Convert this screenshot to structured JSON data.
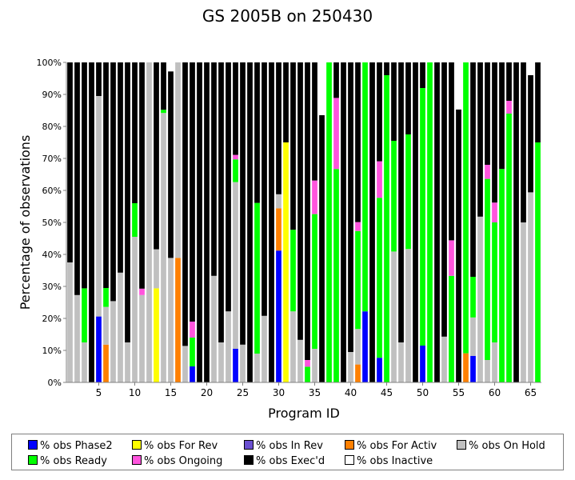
{
  "chart_data": {
    "type": "bar",
    "stacked": true,
    "title": "GS 2005B on 250430",
    "xlabel": "Program ID",
    "ylabel": "Percentage of observations",
    "ylim": [
      0,
      100
    ],
    "y_ticks": [
      "0%",
      "10%",
      "20%",
      "30%",
      "40%",
      "50%",
      "60%",
      "70%",
      "80%",
      "90%",
      "100%"
    ],
    "x_ticks": [
      "5",
      "10",
      "15",
      "20",
      "25",
      "30",
      "35",
      "40",
      "45",
      "50",
      "55",
      "60",
      "65"
    ],
    "x": [
      1,
      2,
      3,
      4,
      5,
      6,
      7,
      8,
      9,
      10,
      11,
      12,
      13,
      14,
      15,
      16,
      17,
      18,
      19,
      20,
      21,
      22,
      23,
      24,
      25,
      26,
      27,
      28,
      29,
      30,
      31,
      32,
      33,
      34,
      35,
      36,
      37,
      38,
      39,
      40,
      41,
      42,
      43,
      44,
      45,
      46,
      47,
      48,
      49,
      50,
      51,
      52,
      53,
      54,
      55,
      56,
      57,
      58,
      59,
      60,
      61,
      62,
      63,
      64,
      65,
      66
    ],
    "series": [
      {
        "name": "% obs Phase2",
        "color": "#0000ff",
        "values": [
          0,
          0,
          0,
          0,
          20.6,
          0,
          0,
          0,
          0,
          0,
          0,
          0,
          0,
          0,
          0,
          0,
          0,
          5,
          0,
          0,
          0,
          0,
          0,
          10.5,
          0,
          0,
          0,
          0,
          0,
          41.2,
          0,
          0,
          0,
          0,
          0,
          0,
          0,
          0,
          0,
          0,
          0,
          22.2,
          0,
          7.7,
          0,
          0,
          0,
          0,
          0,
          11.5,
          0,
          0,
          0,
          0,
          0,
          0,
          8.3,
          0,
          0,
          0,
          0,
          0,
          0,
          0,
          0,
          0
        ]
      },
      {
        "name": "% obs For Rev",
        "color": "#ffff00",
        "values": [
          0,
          0,
          0,
          0,
          0,
          0,
          0,
          0,
          0,
          0,
          0,
          0,
          29.4,
          0,
          0,
          0,
          0,
          0,
          0,
          0,
          0,
          0,
          0,
          0,
          0,
          0,
          0,
          0,
          0,
          0,
          75,
          0,
          0,
          0,
          0,
          0,
          0,
          0,
          0,
          0,
          0,
          0,
          0,
          0,
          0,
          0,
          0,
          0,
          0,
          0,
          0,
          0,
          0,
          0,
          0,
          0,
          0,
          0,
          0,
          0,
          0,
          0,
          0,
          0,
          0,
          0
        ]
      },
      {
        "name": "% obs In Rev",
        "color": "#6a4fd0",
        "values": [
          0,
          0,
          0,
          0,
          0,
          0,
          0,
          0,
          0,
          0,
          0,
          0,
          0,
          0,
          0,
          0,
          0,
          0,
          0,
          0,
          0,
          0,
          0,
          0,
          0,
          0,
          0,
          0,
          0,
          0,
          0,
          0,
          0,
          0,
          0,
          0,
          0,
          0,
          0,
          0,
          0,
          0,
          0,
          0,
          0,
          0,
          0,
          0,
          0,
          0,
          0,
          0,
          0,
          0,
          0,
          0,
          0,
          0,
          0,
          0,
          0,
          0,
          0,
          0,
          0,
          0
        ]
      },
      {
        "name": "% obs For Activ",
        "color": "#ff8000",
        "values": [
          0,
          0,
          0,
          0,
          0,
          11.8,
          0,
          0,
          0,
          0,
          0,
          0,
          0,
          0,
          0,
          38.9,
          0,
          0,
          0,
          0,
          0,
          0,
          0,
          0,
          0,
          0,
          0,
          0,
          0,
          13.2,
          0,
          0,
          0,
          0,
          0,
          0,
          0,
          0,
          0,
          0,
          5.6,
          0,
          0,
          0,
          0,
          0,
          0,
          0,
          0,
          0,
          0,
          0,
          0,
          0,
          0,
          9.1,
          0,
          0,
          0,
          0,
          0,
          0,
          0,
          0,
          0,
          0
        ]
      },
      {
        "name": "% obs On Hold",
        "color": "#c0c0c0",
        "values": [
          37.5,
          27.3,
          12.5,
          0,
          68.9,
          11.8,
          25.4,
          34.3,
          12.5,
          45.5,
          27.3,
          100,
          12.2,
          84.2,
          38.9,
          61.1,
          11.4,
          0,
          0,
          0,
          33.3,
          12.5,
          22.2,
          52.1,
          11.8,
          0,
          9,
          20.8,
          0,
          4.4,
          0,
          22.2,
          13.3,
          0,
          10.5,
          0,
          0,
          0,
          0,
          9.5,
          11.1,
          0,
          0,
          0,
          0,
          40.9,
          12.5,
          41.7,
          0,
          0,
          0,
          0,
          14.3,
          0,
          0,
          0,
          12,
          51.8,
          7,
          12.5,
          0,
          0,
          0,
          50,
          59.4,
          0
        ]
      },
      {
        "name": "% obs Ready",
        "color": "#00ff00",
        "values": [
          0,
          0,
          16.9,
          0,
          0,
          5.9,
          0,
          0,
          0,
          10.5,
          0,
          0,
          0,
          1,
          0,
          0,
          0,
          9,
          0,
          0,
          0,
          0,
          0,
          7.1,
          0,
          0,
          47.1,
          0,
          0,
          0,
          0,
          25.5,
          0,
          4.9,
          42.1,
          0,
          100,
          66.7,
          0,
          0,
          30.6,
          77.8,
          0,
          50,
          96,
          34.6,
          0,
          35.8,
          0,
          80.5,
          100,
          0,
          0,
          33.3,
          0,
          90.9,
          12.7,
          0,
          56.6,
          37.5,
          66.7,
          84,
          0,
          0,
          0,
          75
        ]
      },
      {
        "name": "% obs Ongoing",
        "color": "#ff55dd",
        "values": [
          0,
          0,
          0,
          0,
          0,
          0,
          0,
          0,
          0,
          0,
          2,
          0,
          0,
          0,
          0,
          0,
          0,
          5,
          0,
          0,
          0,
          0,
          0,
          1.4,
          0,
          0,
          0,
          0,
          0,
          0,
          0,
          0,
          0,
          2.1,
          10.5,
          0,
          0,
          22.2,
          0,
          0,
          2.8,
          0,
          0,
          11.4,
          0,
          0,
          0,
          0,
          0,
          0,
          0,
          0,
          0,
          11.1,
          0,
          0,
          0,
          0,
          4.4,
          6.2,
          0,
          4,
          0,
          0,
          0,
          0
        ]
      },
      {
        "name": "% obs Exec'd",
        "color": "#000000",
        "values": [
          62.5,
          72.7,
          70.6,
          100,
          10.5,
          70.5,
          74.6,
          65.7,
          87.5,
          44,
          70.7,
          0,
          58.4,
          14.8,
          58.3,
          0,
          88.6,
          81,
          100,
          100,
          66.7,
          87.5,
          77.8,
          28.9,
          88.2,
          100,
          43.9,
          79.2,
          100,
          41.2,
          25,
          52.3,
          86.7,
          93,
          36.9,
          83.5,
          0,
          11.1,
          100,
          90.5,
          49.9,
          0,
          100,
          30.9,
          4,
          24.5,
          87.5,
          22.5,
          100,
          8,
          0,
          100,
          85.7,
          55.6,
          85.3,
          0,
          67,
          48.2,
          32,
          43.8,
          33.3,
          12,
          100,
          50,
          36.6,
          25
        ]
      },
      {
        "name": "% obs Inactive",
        "color": "#ffffff",
        "values": [
          0,
          0,
          0,
          0,
          0,
          0,
          0,
          0,
          0,
          0,
          0,
          0,
          0,
          0,
          2.8,
          0,
          0,
          0,
          0,
          0,
          0,
          0,
          0,
          0,
          0,
          0,
          0,
          0,
          0,
          0,
          0,
          0,
          0,
          0,
          0,
          16.5,
          0,
          0,
          0,
          0,
          0,
          0,
          0,
          0,
          0,
          0,
          0,
          0,
          0,
          0,
          0,
          0,
          0,
          0,
          14.7,
          0,
          0,
          0,
          0,
          0,
          0,
          0,
          0,
          0,
          4,
          0
        ]
      }
    ],
    "legend_position": "bottom",
    "grid": false
  }
}
